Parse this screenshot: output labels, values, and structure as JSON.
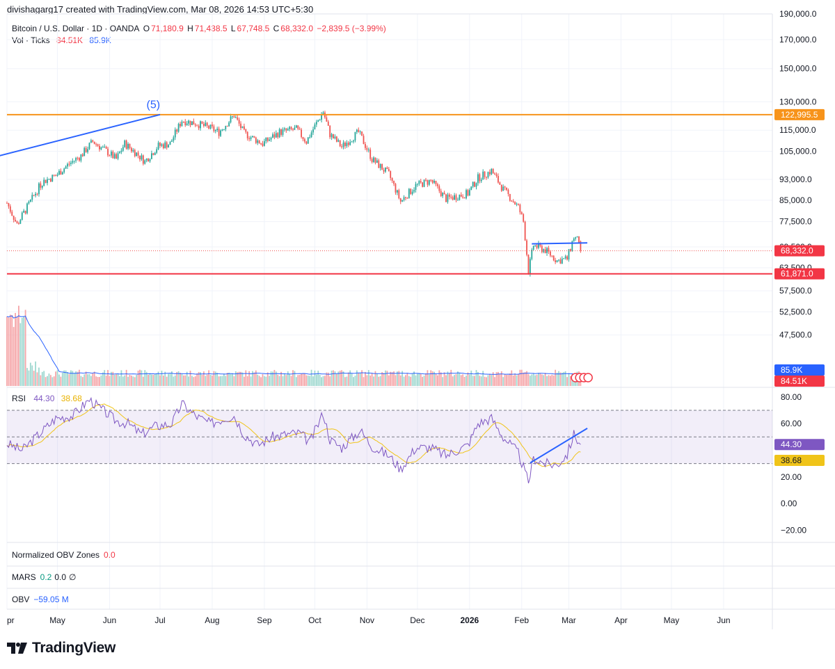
{
  "header": {
    "credit": "divishagarg17 created with TradingView.com, Mar 08, 2026 14:53 UTC+5:30"
  },
  "legend": {
    "symbol": "Bitcoin / U.S. Dollar · 1D · OANDA",
    "open_label": "O",
    "open": "71,180.9",
    "high_label": "H",
    "high": "71,438.5",
    "low_label": "L",
    "low": "67,748.5",
    "close_label": "C",
    "close": "68,332.0",
    "change": "−2,839.5 (−3.99%)",
    "vol_label": "Vol · Ticks",
    "vol_value": "84.51K",
    "vol_ma": "85.9K"
  },
  "annotations": {
    "wave_label": "(5)"
  },
  "price_axis": {
    "labels": [
      "190,000.0",
      "170,000.0",
      "150,000.0",
      "130,000.0",
      "115,000.0",
      "105,000.0",
      "93,000.0",
      "85,000.0",
      "77,500.0",
      "69,500.0",
      "63,500.0",
      "57,500.0",
      "52,500.0",
      "47,500.0"
    ],
    "badges": {
      "resistance": "122,995.5",
      "last_price": "68,332.0",
      "support": "61,871.0",
      "volume_ma": "85.9K",
      "volume": "84.51K"
    }
  },
  "rsi": {
    "label": "RSI",
    "value": "44.30",
    "ma_value": "38.68",
    "axis": [
      "80.00",
      "60.00",
      "20.00",
      "0.00",
      "−20.00"
    ],
    "badge_rsi": "44.30",
    "badge_ma": "38.68"
  },
  "panes": {
    "obv_zones": {
      "label": "Normalized OBV Zones",
      "value": "0.0"
    },
    "mars": {
      "label": "MARS",
      "value1": "0.2",
      "value2": "0.0",
      "symbol": "∅"
    },
    "obv": {
      "label": "OBV",
      "value": "−59.05 M"
    }
  },
  "time_axis": [
    "pr",
    "May",
    "Jun",
    "Jul",
    "Aug",
    "Sep",
    "Oct",
    "Nov",
    "Dec",
    "2026",
    "Feb",
    "Mar",
    "Apr",
    "May",
    "Jun"
  ],
  "brand": {
    "logo_icon": "tradingview-logo-icon",
    "name": "TradingView"
  },
  "colors": {
    "up": "#26a69a",
    "down": "#ef5350",
    "resistance": "#f7931a",
    "support": "#f23645",
    "trend": "#2962ff",
    "rsi": "#7e57c2",
    "rsi_ma": "#f0c419"
  },
  "chart_data": {
    "type": "candlestick",
    "symbol": "Bitcoin / U.S. Dollar",
    "interval": "1D",
    "y_scale": "log",
    "ylim": [
      57000,
      190000
    ],
    "x_start": "2025-04-01",
    "x_end": "2026-06-30",
    "price_approx": [
      [
        "2025-04-01",
        84000
      ],
      [
        "2025-04-07",
        76500
      ],
      [
        "2025-04-15",
        84500
      ],
      [
        "2025-04-22",
        92000
      ],
      [
        "2025-04-30",
        94500
      ],
      [
        "2025-05-08",
        99500
      ],
      [
        "2025-05-15",
        103000
      ],
      [
        "2025-05-22",
        109500
      ],
      [
        "2025-05-31",
        104500
      ],
      [
        "2025-06-05",
        101500
      ],
      [
        "2025-06-10",
        108500
      ],
      [
        "2025-06-17",
        104000
      ],
      [
        "2025-06-22",
        100500
      ],
      [
        "2025-06-30",
        107500
      ],
      [
        "2025-07-07",
        108500
      ],
      [
        "2025-07-14",
        120000
      ],
      [
        "2025-07-22",
        118500
      ],
      [
        "2025-07-31",
        116000
      ],
      [
        "2025-08-05",
        114000
      ],
      [
        "2025-08-14",
        122500
      ],
      [
        "2025-08-20",
        113500
      ],
      [
        "2025-08-31",
        108500
      ],
      [
        "2025-09-10",
        114000
      ],
      [
        "2025-09-20",
        115500
      ],
      [
        "2025-09-26",
        109500
      ],
      [
        "2025-10-06",
        124500
      ],
      [
        "2025-10-10",
        113000
      ],
      [
        "2025-10-17",
        107000
      ],
      [
        "2025-10-27",
        114000
      ],
      [
        "2025-11-04",
        101500
      ],
      [
        "2025-11-14",
        95000
      ],
      [
        "2025-11-21",
        84500
      ],
      [
        "2025-11-30",
        90500
      ],
      [
        "2025-12-09",
        92500
      ],
      [
        "2025-12-18",
        85500
      ],
      [
        "2025-12-31",
        87500
      ],
      [
        "2026-01-06",
        93500
      ],
      [
        "2026-01-14",
        96500
      ],
      [
        "2026-01-21",
        89000
      ],
      [
        "2026-01-30",
        82500
      ],
      [
        "2026-02-02",
        77500
      ],
      [
        "2026-02-05",
        62500
      ],
      [
        "2026-02-08",
        70000
      ],
      [
        "2026-02-15",
        68500
      ],
      [
        "2026-02-22",
        65500
      ],
      [
        "2026-02-28",
        66000
      ],
      [
        "2026-03-04",
        72500
      ],
      [
        "2026-03-07",
        71200
      ],
      [
        "2026-03-08",
        68332
      ]
    ],
    "last": {
      "open": 71180.9,
      "high": 71438.5,
      "low": 67748.5,
      "close": 68332.0,
      "change": -2839.5,
      "change_pct": -3.99
    },
    "horizontal_lines": [
      {
        "name": "resistance",
        "value": 122995.5
      },
      {
        "name": "support",
        "value": 61871.0
      },
      {
        "name": "last_price",
        "value": 68332.0
      }
    ],
    "trendlines": [
      {
        "from": [
          "2025-03-25",
          102500
        ],
        "to": [
          "2025-07-01",
          122995.5
        ]
      },
      {
        "from": [
          "2026-02-07",
          70400
        ],
        "to": [
          "2026-03-12",
          70700
        ]
      }
    ],
    "volume": {
      "last": 84510,
      "ma": 85900
    },
    "rsi": {
      "ylim": [
        -25,
        82
      ],
      "bands": [
        70,
        50,
        30
      ],
      "last": 44.3,
      "ma_last": 38.68,
      "values_approx": [
        [
          "2025-04-01",
          45
        ],
        [
          "2025-04-10",
          40
        ],
        [
          "2025-04-20",
          52
        ],
        [
          "2025-04-30",
          64
        ],
        [
          "2025-05-10",
          66
        ],
        [
          "2025-05-20",
          78
        ],
        [
          "2025-05-28",
          70
        ],
        [
          "2025-06-05",
          62
        ],
        [
          "2025-06-12",
          60
        ],
        [
          "2025-06-20",
          52
        ],
        [
          "2025-06-28",
          58
        ],
        [
          "2025-07-08",
          60
        ],
        [
          "2025-07-14",
          75
        ],
        [
          "2025-07-22",
          66
        ],
        [
          "2025-07-31",
          60
        ],
        [
          "2025-08-08",
          64
        ],
        [
          "2025-08-14",
          66
        ],
        [
          "2025-08-20",
          52
        ],
        [
          "2025-08-28",
          44
        ],
        [
          "2025-09-06",
          50
        ],
        [
          "2025-09-14",
          52
        ],
        [
          "2025-09-22",
          53
        ],
        [
          "2025-09-28",
          46
        ],
        [
          "2025-10-06",
          68
        ],
        [
          "2025-10-10",
          48
        ],
        [
          "2025-10-17",
          42
        ],
        [
          "2025-10-28",
          55
        ],
        [
          "2025-11-04",
          43
        ],
        [
          "2025-11-14",
          36
        ],
        [
          "2025-11-21",
          26
        ],
        [
          "2025-11-30",
          42
        ],
        [
          "2025-12-09",
          42
        ],
        [
          "2025-12-18",
          36
        ],
        [
          "2025-12-31",
          44
        ],
        [
          "2026-01-06",
          60
        ],
        [
          "2026-01-14",
          64
        ],
        [
          "2026-01-21",
          50
        ],
        [
          "2026-01-30",
          38
        ],
        [
          "2026-02-05",
          16
        ],
        [
          "2026-02-08",
          34
        ],
        [
          "2026-02-15",
          30
        ],
        [
          "2026-02-22",
          29
        ],
        [
          "2026-02-28",
          37
        ],
        [
          "2026-03-04",
          52
        ],
        [
          "2026-03-08",
          44.3
        ]
      ],
      "trendline": {
        "from": [
          "2026-02-06",
          30.5
        ],
        "to": [
          "2026-03-12",
          56.5
        ]
      }
    },
    "lower_panes": [
      {
        "name": "Normalized OBV Zones",
        "value": 0.0
      },
      {
        "name": "MARS",
        "values": [
          0.2,
          0.0
        ]
      },
      {
        "name": "OBV",
        "value": "−59.05 M"
      }
    ]
  }
}
